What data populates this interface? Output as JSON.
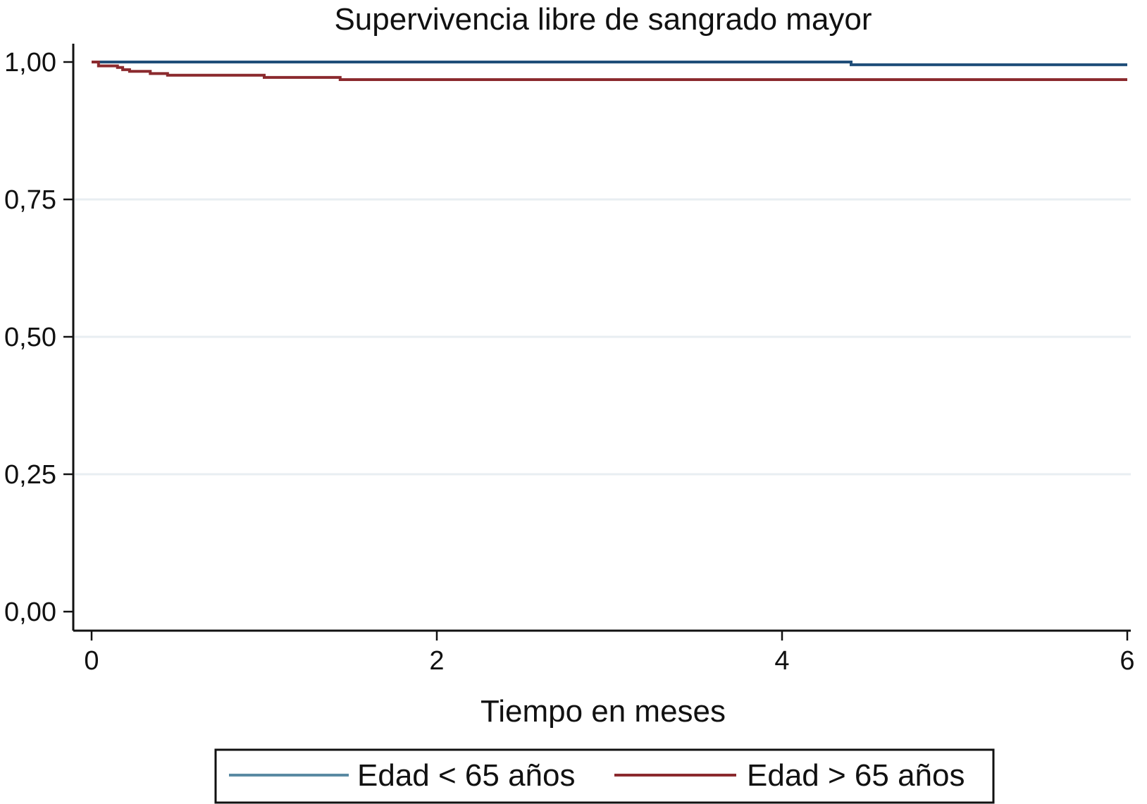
{
  "chart_data": {
    "type": "line",
    "title": "Supervivencia libre de sangrado mayor",
    "xlabel": "Tiempo en meses",
    "ylabel": "",
    "xlim": [
      0,
      6
    ],
    "ylim": [
      0,
      1
    ],
    "x_ticks": [
      {
        "value": 0,
        "label": "0"
      },
      {
        "value": 2,
        "label": "2"
      },
      {
        "value": 4,
        "label": "4"
      },
      {
        "value": 6,
        "label": "6"
      }
    ],
    "y_ticks": [
      {
        "value": 0,
        "label": "0,00"
      },
      {
        "value": 0.25,
        "label": "0,25"
      },
      {
        "value": 0.5,
        "label": "0,50"
      },
      {
        "value": 0.75,
        "label": "0,75"
      },
      {
        "value": 1,
        "label": "1,00"
      }
    ],
    "grid": true,
    "legend_position": "bottom",
    "series": [
      {
        "name": "Edad < 65 años",
        "color": "#1f4e79",
        "legend_color": "#5a8aa3",
        "step": true,
        "x": [
          0,
          4.4,
          6
        ],
        "y": [
          1.0,
          0.995,
          0.995
        ]
      },
      {
        "name": "Edad > 65 años",
        "color": "#8b2a2e",
        "legend_color": "#8b2a2e",
        "step": true,
        "x": [
          0,
          0.04,
          0.15,
          0.18,
          0.22,
          0.34,
          0.44,
          1.0,
          1.44,
          6
        ],
        "y": [
          1.0,
          0.993,
          0.99,
          0.986,
          0.983,
          0.979,
          0.976,
          0.972,
          0.968,
          0.968
        ]
      }
    ]
  }
}
